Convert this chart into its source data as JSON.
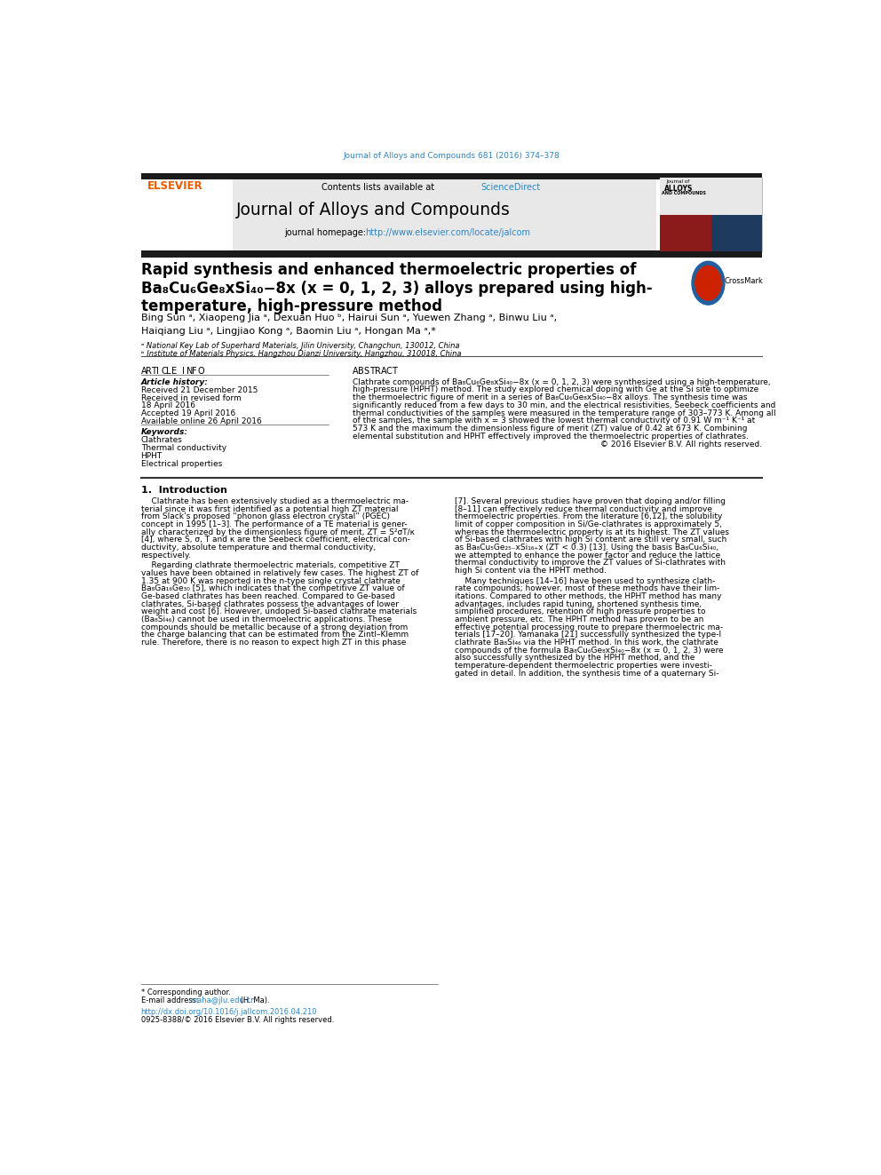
{
  "page_width": 9.92,
  "page_height": 13.23,
  "background_color": "#ffffff",
  "header_citation": "Journal of Alloys and Compounds 681 (2016) 374–378",
  "header_citation_color": "#2e86c1",
  "journal_name": "Journal of Alloys and Compounds",
  "sciencedirect_color": "#2e86c1",
  "elsevier_color": "#e65c00",
  "header_bg_color": "#e8e8e8",
  "black_bar_color": "#1a1a1a",
  "title_line1": "Rapid synthesis and enhanced thermoelectric properties of",
  "title_line2": "Ba₈Cu₆Ge₈xSi₄₀−8x (x = 0, 1, 2, 3) alloys prepared using high-",
  "title_line3": "temperature, high-pressure method",
  "authors": "Bing Sun ᵃ, Xiaopeng Jia ᵃ, Dexuan Huo ᵇ, Hairui Sun ᵃ, Yuewen Zhang ᵃ, Binwu Liu ᵃ,",
  "authors2": "Haiqiang Liu ᵃ, Lingjiao Kong ᵃ, Baomin Liu ᵃ, Hongan Ma ᵃ,*",
  "affil1": "ᵃ National Key Lab of Superhard Materials, Jilin University, Changchun, 130012, China",
  "affil2": "ᵇ Institute of Materials Physics, Hangzhou Dianzi University, Hangzhou, 310018, China",
  "article_history_label": "Article history:",
  "received1": "Received 21 December 2015",
  "received2": "Received in revised form",
  "received2b": "18 April 2016",
  "accepted": "Accepted 19 April 2016",
  "available": "Available online 26 April 2016",
  "keywords_label": "Keywords:",
  "keyword1": "Clathrates",
  "keyword2": "Thermal conductivity",
  "keyword3": "HPHT",
  "keyword4": "Electrical properties",
  "copyright": "© 2016 Elsevier B.V. All rights reserved.",
  "section1_title": "1.  Introduction",
  "footer_corr": "* Corresponding author.",
  "footer_email_label": "E-mail address: ",
  "footer_email": "maha@jlu.edu.cn",
  "footer_email2": " (H. Ma).",
  "footer_doi": "http://dx.doi.org/10.1016/j.jallcom.2016.04.210",
  "footer_issn": "0925-8388/© 2016 Elsevier B.V. All rights reserved.",
  "abstract_lines": [
    "Clathrate compounds of Ba₈Cu₆Ge₈xSi₄₀−8x (x = 0, 1, 2, 3) were synthesized using a high-temperature,",
    "high-pressure (HPHT) method. The study explored chemical doping with Ge at the Si site to optimize",
    "the thermoelectric figure of merit in a series of Ba₈Cu₆Ge₈xSi₄₀−8x alloys. The synthesis time was",
    "significantly reduced from a few days to 30 min, and the electrical resistivities, Seebeck coefficients and",
    "thermal conductivities of the samples were measured in the temperature range of 303–773 K. Among all",
    "of the samples, the sample with x = 3 showed the lowest thermal conductivity of 0.91 W m⁻¹ K⁻¹ at",
    "573 K and the maximum the dimensionless figure of merit (ZT) value of 0.42 at 673 K. Combining",
    "elemental substitution and HPHT effectively improved the thermoelectric properties of clathrates."
  ],
  "col1_lines1": [
    "    Clathrate has been extensively studied as a thermoelectric ma-",
    "terial since it was first identified as a potential high ZT material",
    "from Slack’s proposed “phonon glass electron crystal” (PGEC)",
    "concept in 1995 [1–3]. The performance of a TE material is gener-",
    "ally characterized by the dimensionless figure of merit, ZT = S²σT/κ",
    "[4], where S, σ, T and κ are the Seebeck coefficient, electrical con-",
    "ductivity, absolute temperature and thermal conductivity,",
    "respectively."
  ],
  "col1_lines2": [
    "    Regarding clathrate thermoelectric materials, competitive ZT",
    "values have been obtained in relatively few cases. The highest ZT of",
    "1.35 at 900 K was reported in the n-type single crystal clathrate",
    "Ba₈Ga₁₆Ge₃₀ [5], which indicates that the competitive ZT value of",
    "Ge-based clathrates has been reached. Compared to Ge-based",
    "clathrates, Si-based clathrates possess the advantages of lower",
    "weight and cost [6]. However, undoped Si-based clathrate materials",
    "(Ba₈Si₄₆) cannot be used in thermoelectric applications. These",
    "compounds should be metallic because of a strong deviation from",
    "the charge balancing that can be estimated from the Zintl–Klemm",
    "rule. Therefore, there is no reason to expect high ZT in this phase"
  ],
  "col2_lines1": [
    "[7]. Several previous studies have proven that doping and/or filling",
    "[8–11] can effectively reduce thermal conductivity and improve",
    "thermoelectric properties. From the literature [6,12], the solubility",
    "limit of copper composition in Si/Ge-clathrates is approximately 5,",
    "whereas the thermoelectric property is at its highest. The ZT values",
    "of Si-based clathrates with high Si content are still very small, such",
    "as Ba₈Cu₅Ge₂₅₋xSi₁₆₊x (ZT < 0.3) [13]. Using the basis Ba₈Cu₆Si₄₀,",
    "we attempted to enhance the power factor and reduce the lattice",
    "thermal conductivity to improve the ZT values of Si-clathrates with",
    "high Si content via the HPHT method."
  ],
  "col2_lines2": [
    "    Many techniques [14–16] have been used to synthesize clath-",
    "rate compounds; however, most of these methods have their lim-",
    "itations. Compared to other methods, the HPHT method has many",
    "advantages, includes rapid tuning, shortened synthesis time,",
    "simplified procedures, retention of high pressure properties to",
    "ambient pressure, etc. The HPHT method has proven to be an",
    "effective potential processing route to prepare thermoelectric ma-",
    "terials [17–20]. Yamanaka [21] successfully synthesized the type-I",
    "clathrate Ba₈Si₄₆ via the HPHT method. In this work, the clathrate",
    "compounds of the formula Ba₈Cu₆Ge₈xSi₄₀−8x (x = 0, 1, 2, 3) were",
    "also successfully synthesized by the HPHT method, and the",
    "temperature-dependent thermoelectric properties were investi-",
    "gated in detail. In addition, the synthesis time of a quaternary Si-"
  ]
}
